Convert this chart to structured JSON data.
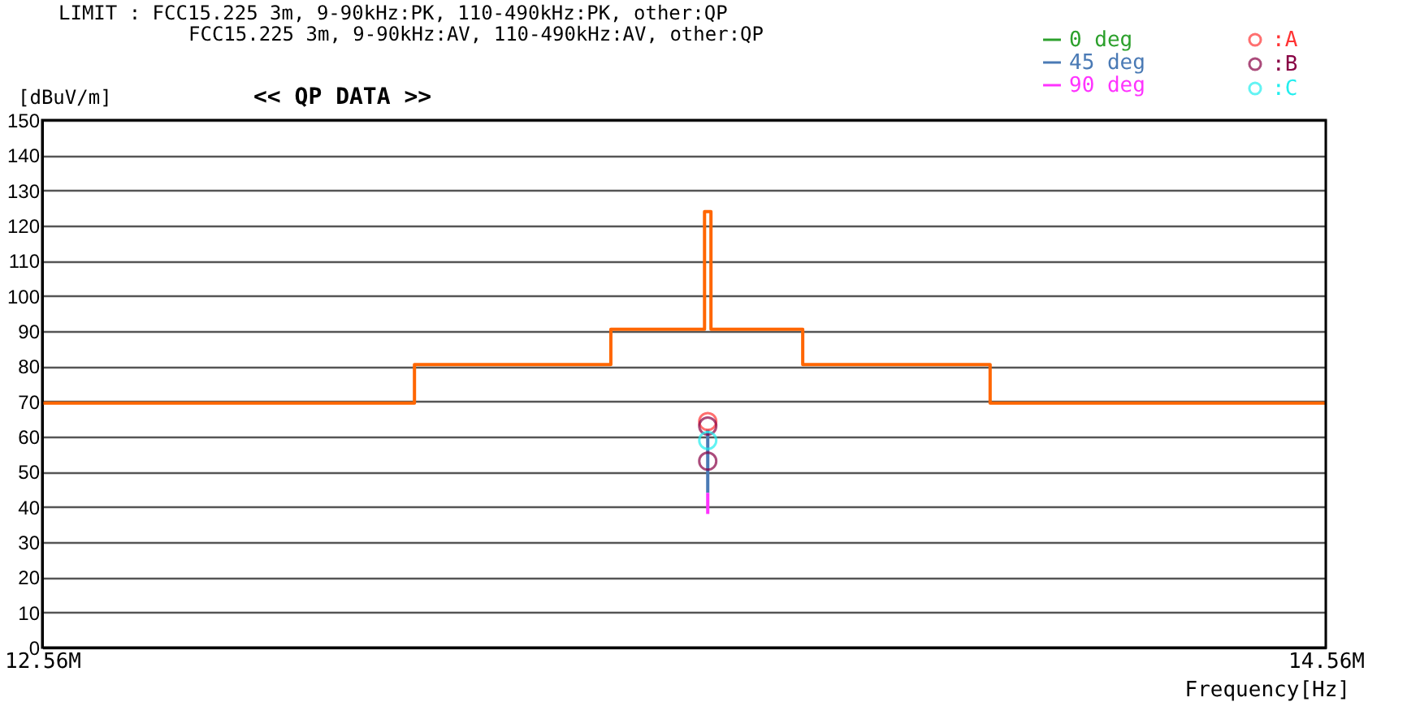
{
  "chart_data": {
    "type": "line",
    "ylabel": "[dBuV/m]",
    "xlabel": "Frequency[Hz]",
    "annotations": [
      "LIMIT : FCC15.225 3m, 9-90kHz:PK, 110-490kHz:PK, other:QP",
      "FCC15.225 3m, 9-90kHz:AV, 110-490kHz:AV, other:QP",
      "<< QP DATA >>"
    ],
    "xlim": [
      12.56,
      14.56
    ],
    "xticks": [
      {
        "value": 12.56,
        "label": "12.56M"
      },
      {
        "value": 14.56,
        "label": "14.56M"
      }
    ],
    "ylim": [
      0,
      150
    ],
    "yticks": [
      0,
      10,
      20,
      30,
      40,
      50,
      60,
      70,
      80,
      90,
      100,
      110,
      120,
      130,
      140,
      150
    ],
    "grid": "y",
    "legend": "top right",
    "series": [
      {
        "type": "step",
        "color": "#ff6600",
        "x": [
          12.56,
          13.14,
          13.446,
          13.592,
          13.602,
          13.745,
          14.037,
          14.56
        ],
        "values": [
          69.5,
          80.5,
          90.5,
          124,
          90.5,
          80.5,
          69.5,
          69.5
        ]
      },
      {
        "name": "0 deg",
        "color": "#2ca02c"
      },
      {
        "name": "45 deg",
        "color": "#4a7ab5",
        "x": [
          13.597,
          13.597
        ],
        "values": [
          44,
          62
        ]
      },
      {
        "name": "90 deg",
        "color": "#ff33ff",
        "x": [
          13.597,
          13.597
        ],
        "values": [
          38,
          44
        ]
      },
      {
        "name": ":A",
        "type": "scatter",
        "marker": "circle",
        "color": "#ff3333",
        "x": [
          13.597
        ],
        "values": [
          64.3
        ]
      },
      {
        "name": ":B",
        "type": "scatter",
        "marker": "circle",
        "color": "#880044",
        "x": [
          13.597,
          13.597
        ],
        "values": [
          63,
          53
        ]
      },
      {
        "name": ":C",
        "type": "scatter",
        "marker": "circle",
        "color": "#22eeee",
        "x": [
          13.597
        ],
        "values": [
          58.9
        ]
      }
    ]
  }
}
